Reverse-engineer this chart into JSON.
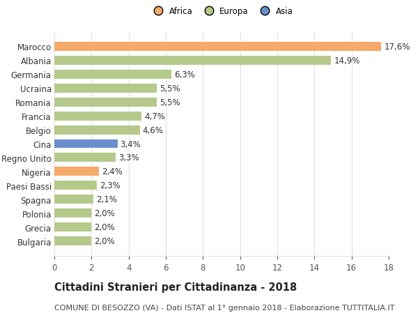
{
  "categories": [
    "Bulgaria",
    "Grecia",
    "Polonia",
    "Spagna",
    "Paesi Bassi",
    "Nigeria",
    "Regno Unito",
    "Cina",
    "Belgio",
    "Francia",
    "Romania",
    "Ucraina",
    "Germania",
    "Albania",
    "Marocco"
  ],
  "values": [
    2.0,
    2.0,
    2.0,
    2.1,
    2.3,
    2.4,
    3.3,
    3.4,
    4.6,
    4.7,
    5.5,
    5.5,
    6.3,
    14.9,
    17.6
  ],
  "colors": [
    "#b5c98a",
    "#b5c98a",
    "#b5c98a",
    "#b5c98a",
    "#b5c98a",
    "#f5a96b",
    "#b5c98a",
    "#6b8fce",
    "#b5c98a",
    "#b5c98a",
    "#b5c98a",
    "#b5c98a",
    "#b5c98a",
    "#b5c98a",
    "#f5a96b"
  ],
  "labels": [
    "2,0%",
    "2,0%",
    "2,0%",
    "2,1%",
    "2,3%",
    "2,4%",
    "3,3%",
    "3,4%",
    "4,6%",
    "4,7%",
    "5,5%",
    "5,5%",
    "6,3%",
    "14,9%",
    "17,6%"
  ],
  "legend_labels": [
    "Africa",
    "Europa",
    "Asia"
  ],
  "legend_colors": [
    "#f5a96b",
    "#b5c98a",
    "#6b8fce"
  ],
  "title": "Cittadini Stranieri per Cittadinanza - 2018",
  "subtitle": "COMUNE DI BESOZZO (VA) - Dati ISTAT al 1° gennaio 2018 - Elaborazione TUTTITALIA.IT",
  "xlim": [
    0,
    18
  ],
  "xticks": [
    0,
    2,
    4,
    6,
    8,
    10,
    12,
    14,
    16,
    18
  ],
  "background_color": "#ffffff",
  "grid_color": "#e0e0e0",
  "bar_height": 0.65,
  "label_fontsize": 8.5,
  "tick_fontsize": 8.5,
  "title_fontsize": 10.5,
  "subtitle_fontsize": 8.0
}
